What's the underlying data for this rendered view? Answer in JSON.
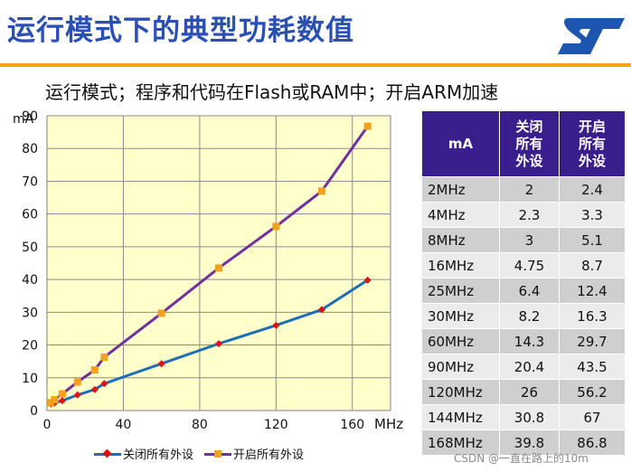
{
  "header": {
    "title": "运行模式下的典型功耗数值",
    "subtitle": "运行模式；程序和代码在Flash或RAM中；开启ARM加速",
    "colors": {
      "title": "#2a4fb5",
      "rule": "#f2a114",
      "logo": "#1d56b0"
    }
  },
  "logo": {
    "icon": "st-logo"
  },
  "chart_data": {
    "type": "line",
    "ylabel": "mA",
    "xlabel": "MHz",
    "xlim": [
      0,
      180
    ],
    "ylim": [
      0,
      90
    ],
    "xticks": [
      0,
      40,
      80,
      120,
      160
    ],
    "yticks": [
      0,
      10,
      20,
      30,
      40,
      50,
      60,
      70,
      80,
      90
    ],
    "grid": true,
    "plot_background": "#ffffcc",
    "legend_position": "bottom",
    "series": [
      {
        "name": "关闭所有外设",
        "color": "#1f6fb5",
        "marker": "diamond",
        "marker_color": "#e01010",
        "x": [
          2,
          4,
          8,
          16,
          25,
          30,
          60,
          90,
          120,
          144,
          168
        ],
        "y": [
          2,
          2.3,
          3,
          4.75,
          6.4,
          8.2,
          14.3,
          20.4,
          26,
          30.8,
          39.8
        ]
      },
      {
        "name": "开启所有外设",
        "color": "#7030a0",
        "marker": "square",
        "marker_color": "#f2a020",
        "x": [
          2,
          4,
          8,
          16,
          25,
          30,
          60,
          90,
          120,
          144,
          168
        ],
        "y": [
          2.4,
          3.3,
          5.1,
          8.7,
          12.4,
          16.3,
          29.7,
          43.5,
          56.2,
          67,
          86.8
        ]
      }
    ]
  },
  "table": {
    "header_color": "#3a1f8c",
    "headers": [
      "mA",
      "关闭\n所有\n外设",
      "开启\n所有\n外设"
    ],
    "rows": [
      [
        "2MHz",
        "2",
        "2.4"
      ],
      [
        "4MHz",
        "2.3",
        "3.3"
      ],
      [
        "8MHz",
        "3",
        "5.1"
      ],
      [
        "16MHz",
        "4.75",
        "8.7"
      ],
      [
        "25MHz",
        "6.4",
        "12.4"
      ],
      [
        "30MHz",
        "8.2",
        "16.3"
      ],
      [
        "60MHz",
        "14.3",
        "29.7"
      ],
      [
        "90MHz",
        "20.4",
        "43.5"
      ],
      [
        "120MHz",
        "26",
        "56.2"
      ],
      [
        "144MHz",
        "30.8",
        "67"
      ],
      [
        "168MHz",
        "39.8",
        "86.8"
      ]
    ]
  },
  "watermark": "CSDN @一直在路上的10m"
}
